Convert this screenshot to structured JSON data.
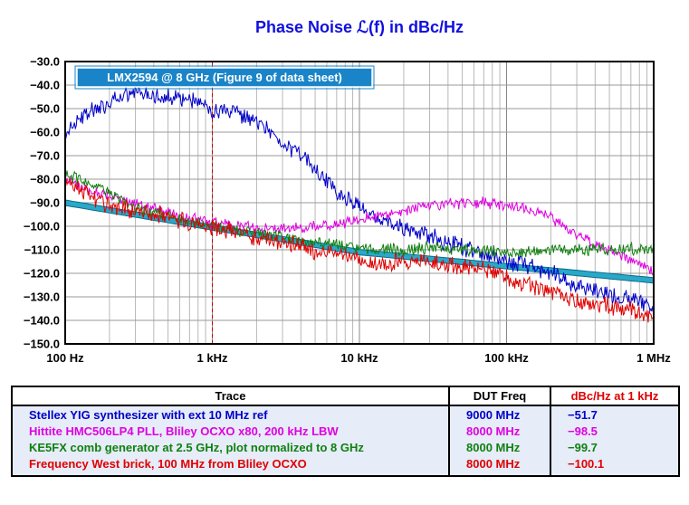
{
  "chart_data": {
    "type": "line",
    "title": "Phase Noise ℒ(f) in dBc/Hz",
    "x_scale": "log",
    "xlim": [
      100,
      1000000
    ],
    "ylim": [
      -150,
      -30
    ],
    "x_tick_values": [
      100,
      1000,
      10000,
      100000,
      1000000
    ],
    "x_tick_labels": [
      "100 Hz",
      "1 kHz",
      "10 kHz",
      "100 kHz",
      "1 MHz"
    ],
    "y_tick_values": [
      -30,
      -40,
      -50,
      -60,
      -70,
      -80,
      -90,
      -100,
      -110,
      -120,
      -130,
      -140,
      -150
    ],
    "y_tick_labels": [
      "−30.0",
      "−40.0",
      "−50.0",
      "−60.0",
      "−70.0",
      "−80.0",
      "−90.0",
      "−100.0",
      "−110.0",
      "−120.0",
      "−130.0",
      "−140.0",
      "−150.0"
    ],
    "grid": true,
    "marker_x": 1000,
    "legend_label": "LMX2594 @ 8 GHz (Figure 9 of data sheet)",
    "reference_trace": {
      "color": "#2aa8c8",
      "x": [
        100,
        1000,
        10000,
        100000,
        1000000
      ],
      "y": [
        -90,
        -100.5,
        -111,
        -117,
        -123
      ]
    },
    "series": [
      {
        "name": "Stellex YIG synthesizer with ext 10 MHz ref",
        "color": "#0000c8",
        "jitter": 3.0,
        "x": [
          100,
          130,
          200,
          300,
          500,
          800,
          1000,
          1500,
          2500,
          4000,
          6000,
          8000,
          10000,
          15000,
          20000,
          30000,
          50000,
          70000,
          100000,
          150000,
          200000,
          300000,
          500000,
          700000,
          1000000
        ],
        "y": [
          -60,
          -53,
          -48,
          -43,
          -45,
          -47,
          -51.7,
          -52,
          -60,
          -70,
          -81,
          -88,
          -92,
          -98,
          -101,
          -104,
          -109,
          -112,
          -115,
          -117,
          -120,
          -125,
          -129,
          -131,
          -134
        ]
      },
      {
        "name": "Hittite HMC506LP4 PLL, Bliley OCXO x80, 200 kHz LBW",
        "color": "#e000e0",
        "jitter": 2.0,
        "x": [
          100,
          150,
          200,
          300,
          500,
          800,
          1000,
          1500,
          2000,
          3000,
          5000,
          7000,
          10000,
          15000,
          20000,
          30000,
          50000,
          70000,
          100000,
          150000,
          200000,
          300000,
          500000,
          700000,
          1000000
        ],
        "y": [
          -80,
          -85,
          -87,
          -90,
          -94,
          -97,
          -98.5,
          -100,
          -101,
          -101,
          -100,
          -99,
          -97,
          -95,
          -93,
          -91,
          -90,
          -90,
          -91,
          -93,
          -96,
          -104,
          -110,
          -114,
          -120
        ]
      },
      {
        "name": "KE5FX comb generator at 2.5 GHz, plot normalized to 8 GHz",
        "color": "#108010",
        "jitter": 2.2,
        "x": [
          100,
          150,
          200,
          300,
          500,
          800,
          1000,
          1500,
          2000,
          3000,
          5000,
          7000,
          10000,
          15000,
          20000,
          30000,
          50000,
          70000,
          100000,
          150000,
          200000,
          300000,
          500000,
          700000,
          1000000
        ],
        "y": [
          -78,
          -82,
          -86,
          -92,
          -96,
          -99,
          -99.7,
          -102,
          -103,
          -105,
          -107,
          -108,
          -110,
          -110,
          -110,
          -109,
          -110,
          -110,
          -111,
          -111,
          -110,
          -110,
          -110,
          -110,
          -110
        ]
      },
      {
        "name": "Frequency West brick, 100 MHz from Bliley OCXO",
        "color": "#e00000",
        "jitter": 3.2,
        "x": [
          100,
          150,
          200,
          300,
          500,
          800,
          1000,
          1500,
          2000,
          3000,
          5000,
          7000,
          10000,
          15000,
          20000,
          30000,
          50000,
          70000,
          100000,
          150000,
          200000,
          300000,
          500000,
          700000,
          1000000
        ],
        "y": [
          -80,
          -88,
          -92,
          -93,
          -96,
          -99,
          -100.1,
          -103,
          -105,
          -107,
          -110,
          -112,
          -115,
          -116,
          -115,
          -115,
          -117,
          -118,
          -121,
          -126,
          -128,
          -131,
          -134,
          -136,
          -139
        ]
      }
    ]
  },
  "table": {
    "headers": [
      "Trace",
      "DUT Freq",
      "dBc/Hz at 1 kHz"
    ],
    "rows": [
      {
        "trace": "Stellex YIG synthesizer with ext 10 MHz ref",
        "freq": "9000 MHz",
        "level": "−51.7",
        "color": "#0000c8"
      },
      {
        "trace": "Hittite HMC506LP4 PLL, Bliley OCXO x80, 200 kHz LBW",
        "freq": "8000 MHz",
        "level": "−98.5",
        "color": "#e000e0"
      },
      {
        "trace": "KE5FX comb generator at 2.5 GHz, plot normalized to 8 GHz",
        "freq": "8000 MHz",
        "level": "−99.7",
        "color": "#108010"
      },
      {
        "trace": "Frequency West brick, 100 MHz from Bliley OCXO",
        "freq": "8000 MHz",
        "level": "−100.1",
        "color": "#e00000"
      }
    ]
  }
}
